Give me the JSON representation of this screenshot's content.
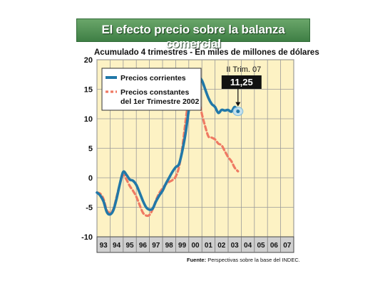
{
  "title": "El efecto precio sobre la balanza comercial",
  "subtitle": "Acumulado 4 trimestres - En miles de millones de dólares",
  "source": {
    "label": "Fuente:",
    "text": "Perspectivas sobre la base del INDEC."
  },
  "colors": {
    "background": "#fdf2c4",
    "series_current": "#2178a8",
    "series_constant": "#ef7a63",
    "title_banner": "#4b8c50",
    "axis_band": "#cfcfcf"
  },
  "chart_data": {
    "type": "line",
    "xlabel": "",
    "ylabel": "",
    "ylim": [
      -10,
      20
    ],
    "yticks": [
      20,
      15,
      10,
      5,
      0,
      -5,
      -10
    ],
    "xlim": [
      1993.0,
      2008.0
    ],
    "xtick_labels": [
      "93",
      "94",
      "95",
      "96",
      "97",
      "98",
      "99",
      "00",
      "01",
      "02",
      "03",
      "04",
      "05",
      "06",
      "07"
    ],
    "grid": true,
    "legend_position": "top-left",
    "series": [
      {
        "name": "Precios corrientes",
        "color": "#2178a8",
        "points": [
          [
            1993.0,
            -2.5
          ],
          [
            1993.25,
            -3.0
          ],
          [
            1993.5,
            -4.0
          ],
          [
            1993.75,
            -5.8
          ],
          [
            1994.0,
            -6.2
          ],
          [
            1994.25,
            -5.5
          ],
          [
            1994.5,
            -3.5
          ],
          [
            1994.75,
            -1.0
          ],
          [
            1995.0,
            1.0
          ],
          [
            1995.25,
            0.5
          ],
          [
            1995.5,
            -0.3
          ],
          [
            1995.75,
            -0.5
          ],
          [
            1996.0,
            -1.2
          ],
          [
            1996.25,
            -2.5
          ],
          [
            1996.5,
            -3.9
          ],
          [
            1996.75,
            -5.0
          ],
          [
            1997.0,
            -5.4
          ],
          [
            1997.25,
            -5.2
          ],
          [
            1997.5,
            -4.0
          ],
          [
            1997.75,
            -3.0
          ],
          [
            1998.0,
            -2.2
          ],
          [
            1998.25,
            -1.0
          ],
          [
            1998.5,
            0.0
          ],
          [
            1998.75,
            1.0
          ],
          [
            1999.0,
            1.8
          ],
          [
            1999.25,
            2.3
          ],
          [
            1999.5,
            4.5
          ],
          [
            1999.75,
            7.5
          ],
          [
            2000.0,
            11.5
          ],
          [
            2000.25,
            15.2
          ],
          [
            2000.5,
            16.8
          ],
          [
            2000.75,
            17.0
          ],
          [
            2001.0,
            16.5
          ],
          [
            2001.25,
            15.0
          ],
          [
            2001.5,
            13.5
          ],
          [
            2001.75,
            12.5
          ],
          [
            2002.0,
            12.0
          ],
          [
            2002.25,
            11.0
          ],
          [
            2002.5,
            11.5
          ],
          [
            2002.75,
            11.4
          ],
          [
            2003.0,
            11.5
          ],
          [
            2003.25,
            11.2
          ],
          [
            2003.5,
            12.0
          ],
          [
            2003.75,
            11.25
          ]
        ]
      },
      {
        "name": "Precios constantes del 1er Trimestre 2002",
        "color": "#ef7a63",
        "points": [
          [
            1993.0,
            -2.5
          ],
          [
            1993.25,
            -2.7
          ],
          [
            1993.5,
            -3.6
          ],
          [
            1993.75,
            -5.5
          ],
          [
            1994.0,
            -5.9
          ],
          [
            1994.25,
            -5.3
          ],
          [
            1994.5,
            -3.2
          ],
          [
            1994.75,
            -1.0
          ],
          [
            1995.0,
            0.5
          ],
          [
            1995.25,
            -0.3
          ],
          [
            1995.5,
            -1.4
          ],
          [
            1995.75,
            -2.2
          ],
          [
            1996.0,
            -3.2
          ],
          [
            1996.25,
            -4.6
          ],
          [
            1996.5,
            -5.9
          ],
          [
            1996.75,
            -6.4
          ],
          [
            1997.0,
            -6.3
          ],
          [
            1997.25,
            -5.3
          ],
          [
            1997.5,
            -3.8
          ],
          [
            1997.75,
            -2.6
          ],
          [
            1998.0,
            -1.8
          ],
          [
            1998.25,
            -1.1
          ],
          [
            1998.5,
            -0.7
          ],
          [
            1998.75,
            -0.4
          ],
          [
            1999.0,
            0.2
          ],
          [
            1999.25,
            1.8
          ],
          [
            1999.5,
            5.0
          ],
          [
            1999.75,
            9.5
          ],
          [
            2000.0,
            13.5
          ],
          [
            2000.25,
            15.3
          ],
          [
            2000.5,
            14.8
          ],
          [
            2000.75,
            13.5
          ],
          [
            2001.0,
            10.8
          ],
          [
            2001.25,
            8.7
          ],
          [
            2001.5,
            7.0
          ],
          [
            2001.75,
            6.8
          ],
          [
            2002.0,
            6.5
          ],
          [
            2002.25,
            5.8
          ],
          [
            2002.5,
            5.5
          ],
          [
            2002.75,
            4.5
          ],
          [
            2003.0,
            3.5
          ],
          [
            2003.25,
            2.8
          ],
          [
            2003.5,
            1.7
          ],
          [
            2003.75,
            1.1
          ]
        ]
      }
    ],
    "annotations": [
      {
        "label": "II Trim. 07",
        "value_text": "11,25",
        "x": 2003.75,
        "y": 11.25
      }
    ]
  }
}
